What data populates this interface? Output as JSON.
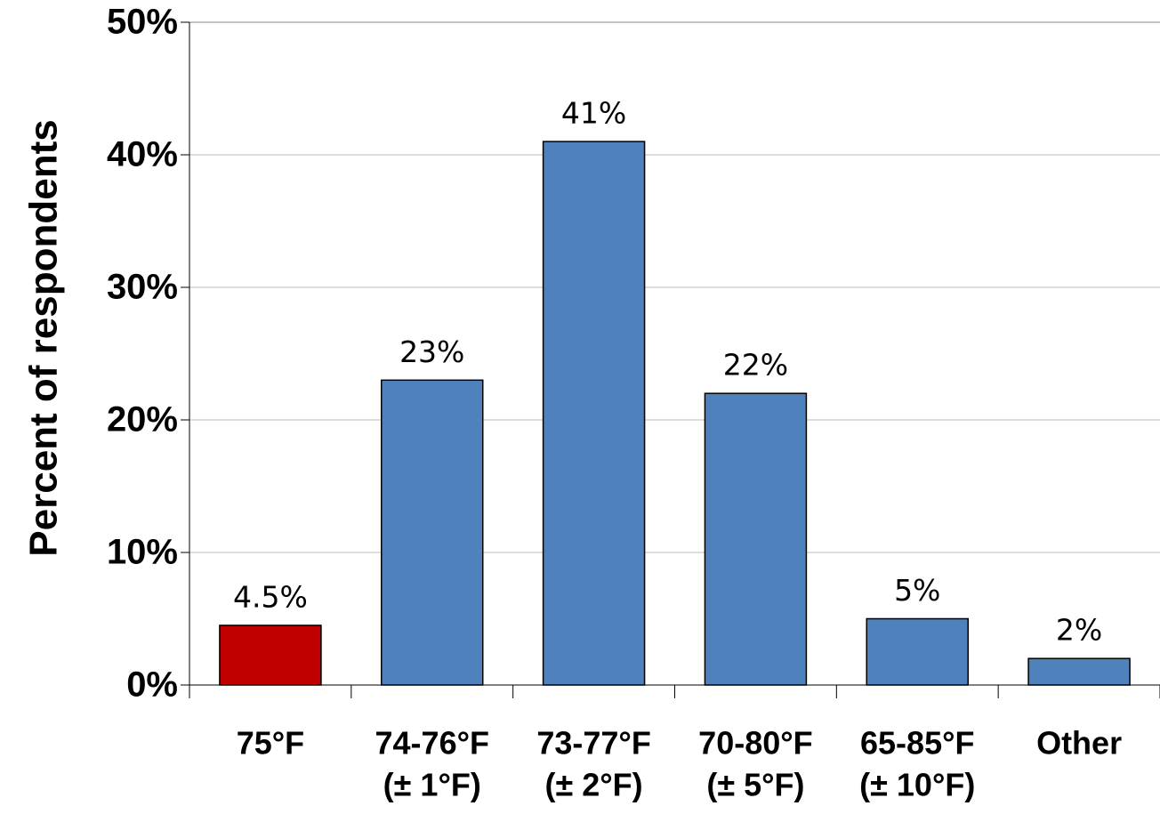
{
  "chart_data": {
    "type": "bar",
    "y_label": "Percent of respondents",
    "categories": [
      [
        "75°F"
      ],
      [
        "74-76°F",
        "(± 1°F)"
      ],
      [
        "73-77°F",
        "(± 2°F)"
      ],
      [
        "70-80°F",
        "(± 5°F)"
      ],
      [
        "65-85°F",
        "(± 10°F)"
      ],
      [
        "Other"
      ]
    ],
    "values": [
      4.5,
      23,
      41,
      22,
      5,
      2
    ],
    "value_labels": [
      "4.5%",
      "23%",
      "41%",
      "22%",
      "5%",
      "2%"
    ],
    "colors": [
      "#c00000",
      "#4f81bd",
      "#4f81bd",
      "#4f81bd",
      "#4f81bd",
      "#4f81bd"
    ],
    "ylim": [
      0,
      50
    ],
    "yticks": [
      {
        "value": 0,
        "label": "0%"
      },
      {
        "value": 10,
        "label": "10%"
      },
      {
        "value": 20,
        "label": "20%"
      },
      {
        "value": 30,
        "label": "30%"
      },
      {
        "value": 40,
        "label": "40%"
      },
      {
        "value": 50,
        "label": "50%"
      }
    ],
    "grid": true
  }
}
